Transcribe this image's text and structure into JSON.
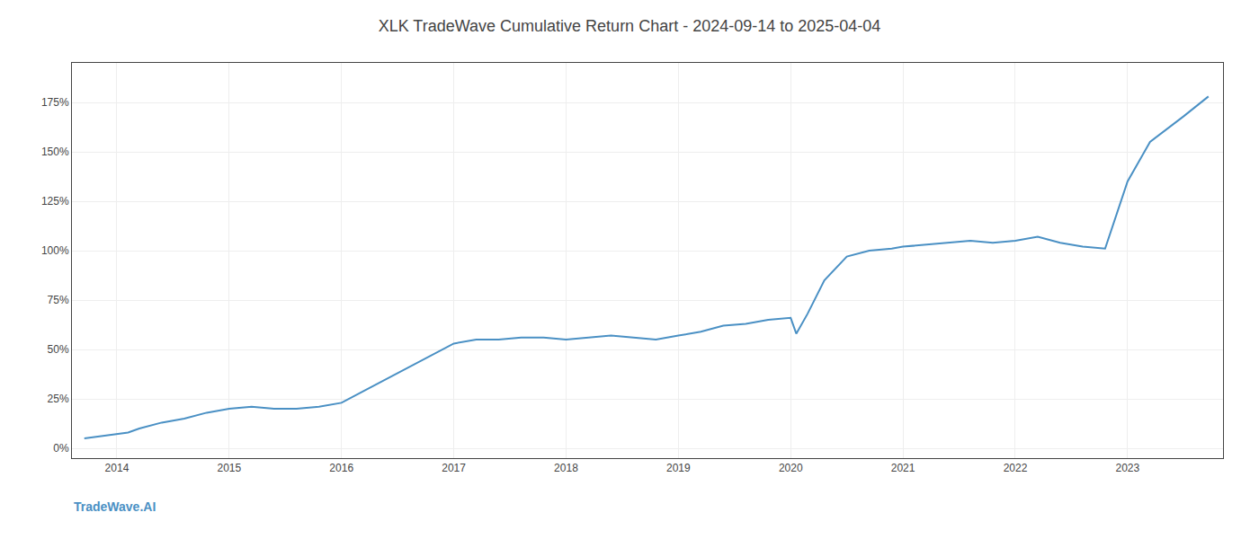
{
  "chart_data": {
    "type": "line",
    "title": "XLK TradeWave Cumulative Return Chart - 2024-09-14 to 2025-04-04",
    "annotations": [
      "TradeWave.AI"
    ],
    "x": [
      2013.71,
      2014.0,
      2014.1,
      2014.2,
      2014.4,
      2014.6,
      2014.8,
      2015.0,
      2015.2,
      2015.4,
      2015.6,
      2015.8,
      2016.0,
      2016.2,
      2016.4,
      2016.6,
      2016.8,
      2017.0,
      2017.2,
      2017.4,
      2017.6,
      2017.8,
      2018.0,
      2018.2,
      2018.4,
      2018.6,
      2018.8,
      2019.0,
      2019.2,
      2019.4,
      2019.6,
      2019.8,
      2020.0,
      2020.05,
      2020.15,
      2020.3,
      2020.5,
      2020.7,
      2020.9,
      2021.0,
      2021.2,
      2021.4,
      2021.6,
      2021.8,
      2022.0,
      2022.2,
      2022.4,
      2022.6,
      2022.8,
      2023.0,
      2023.2,
      2023.5,
      2023.72
    ],
    "values": [
      5,
      7,
      8,
      10,
      13,
      15,
      18,
      20,
      21,
      20,
      20,
      21,
      23,
      29,
      35,
      41,
      47,
      53,
      55,
      55,
      56,
      56,
      55,
      56,
      57,
      56,
      55,
      57,
      59,
      62,
      63,
      65,
      66,
      58,
      68,
      85,
      97,
      100,
      101,
      102,
      103,
      104,
      105,
      104,
      105,
      107,
      104,
      102,
      101,
      135,
      155,
      168,
      178
    ],
    "color": "#4a90c4",
    "xlim": [
      2013.6,
      2023.85
    ],
    "xticks": [
      2014,
      2015,
      2016,
      2017,
      2018,
      2019,
      2020,
      2021,
      2022,
      2023
    ],
    "ylim": [
      -5,
      195
    ],
    "yticks": [
      {
        "value": 0,
        "label": "0%"
      },
      {
        "value": 25,
        "label": "25%"
      },
      {
        "value": 50,
        "label": "50%"
      },
      {
        "value": 75,
        "label": "75%"
      },
      {
        "value": 100,
        "label": "100%"
      },
      {
        "value": 125,
        "label": "125%"
      },
      {
        "value": 150,
        "label": "150%"
      },
      {
        "value": 175,
        "label": "175%"
      }
    ],
    "grid": true
  }
}
